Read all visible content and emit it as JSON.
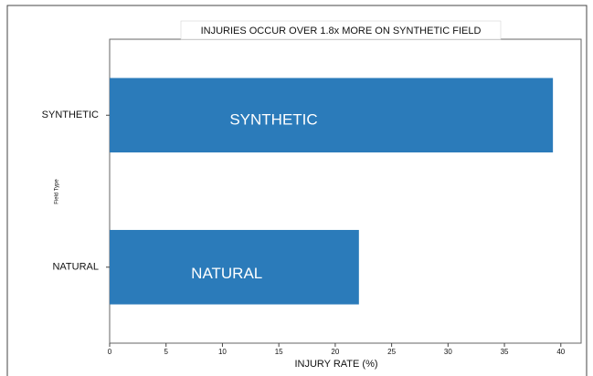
{
  "chart_data": {
    "type": "barh",
    "title": "INJURIES OCCUR OVER 1.8x MORE ON SYNTHETIC FIELD",
    "xlabel": "INJURY RATE (%)",
    "ylabel": "Field Type",
    "categories": [
      "NATURAL",
      "SYNTHETIC"
    ],
    "values": [
      22.1,
      39.3
    ],
    "color": "#2b7bba",
    "xlim": [
      0,
      41.8
    ],
    "xticks": [
      0,
      5,
      10,
      15,
      20,
      25,
      30,
      35,
      40
    ],
    "grid": false
  }
}
